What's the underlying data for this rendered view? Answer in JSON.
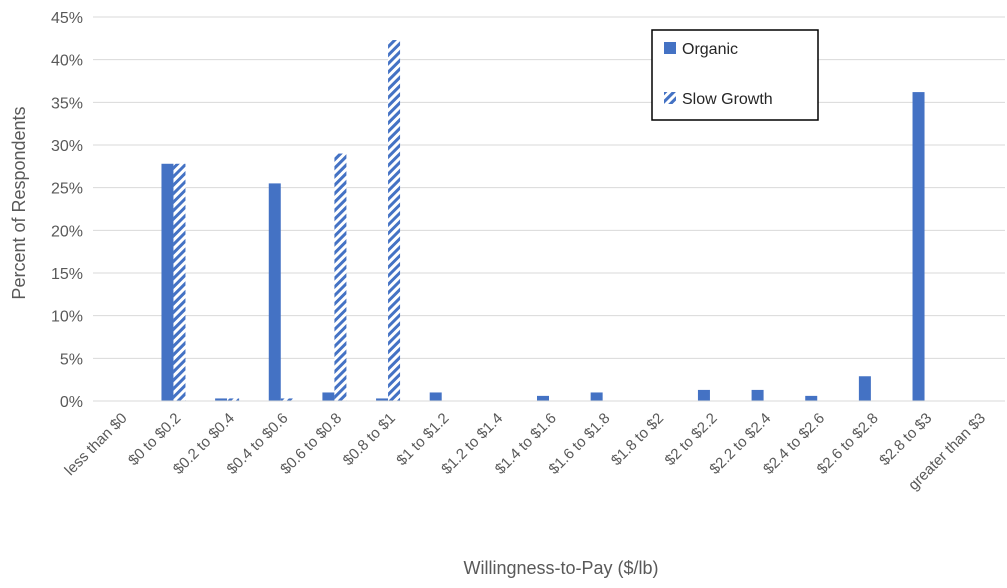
{
  "chart_data": {
    "type": "bar",
    "xlabel": "Willingness-to-Pay ($/lb)",
    "ylabel": "Percent of Respondents",
    "ylim": [
      0,
      45
    ],
    "y_tick_step": 5,
    "y_tick_format": "percent",
    "grid": true,
    "legend_position": "top-right",
    "categories": [
      "less than $0",
      "$0 to $0.2",
      "$0.2 to $0.4",
      "$0.4 to $0.6",
      "$0.6 to $0.8",
      "$0.8 to $1",
      "$1 to $1.2",
      "$1.2 to $1.4",
      "$1.4 to $1.6",
      "$1.6 to $1.8",
      "$1.8 to $2",
      "$2 to $2.2",
      "$2.2 to $2.4",
      "$2.4 to $2.6",
      "$2.6 to $2.8",
      "$2.8 to $3",
      "greater than $3"
    ],
    "series": [
      {
        "name": "Organic",
        "color": "#4472C4",
        "pattern": "solid",
        "values": [
          0,
          27.8,
          0.3,
          25.5,
          1.0,
          0.3,
          1.0,
          0,
          0.6,
          1.0,
          0,
          1.3,
          1.3,
          0.6,
          2.9,
          36.2,
          0
        ]
      },
      {
        "name": "Slow Growth",
        "color": "#4472C4",
        "pattern": "diagonal-stripes",
        "values": [
          0,
          27.8,
          0.3,
          0.3,
          29.0,
          42.3,
          0,
          0,
          0,
          0,
          0,
          0,
          0,
          0,
          0,
          0,
          0
        ]
      }
    ]
  }
}
